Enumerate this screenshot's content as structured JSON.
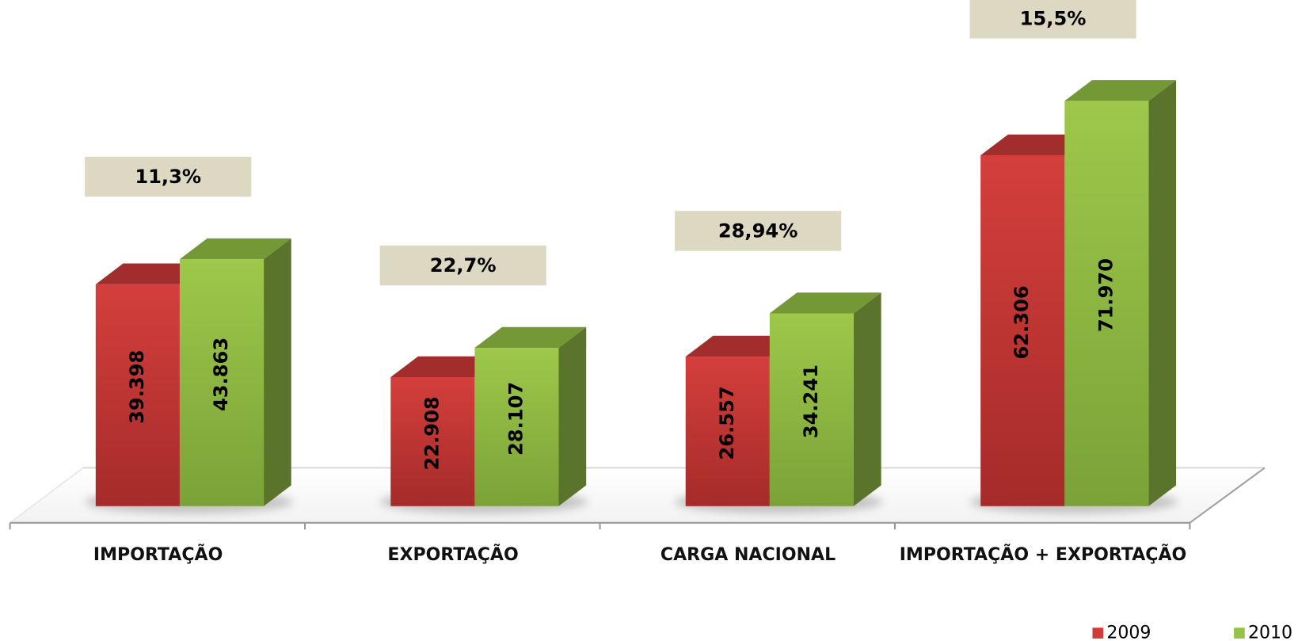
{
  "chart_data": {
    "type": "bar3d",
    "categories": [
      "IMPORTAÇÃO",
      "EXPORTAÇÃO",
      "CARGA NACIONAL",
      "IMPORTAÇÃO + EXPORTAÇÃO"
    ],
    "series": [
      {
        "name": "2009",
        "color": "#cf3b39",
        "values": [
          39398,
          22908,
          26557,
          62306
        ],
        "value_labels": [
          "39.398",
          "22.908",
          "26.557",
          "62.306"
        ]
      },
      {
        "name": "2010",
        "color": "#96c347",
        "values": [
          43863,
          28107,
          34241,
          71970
        ],
        "value_labels": [
          "43.863",
          "28.107",
          "34.241",
          "71.970"
        ]
      }
    ],
    "annotations": [
      "11,3%",
      "22,7%",
      "28,94%",
      "15,5%"
    ],
    "legend": "bottom-right"
  }
}
